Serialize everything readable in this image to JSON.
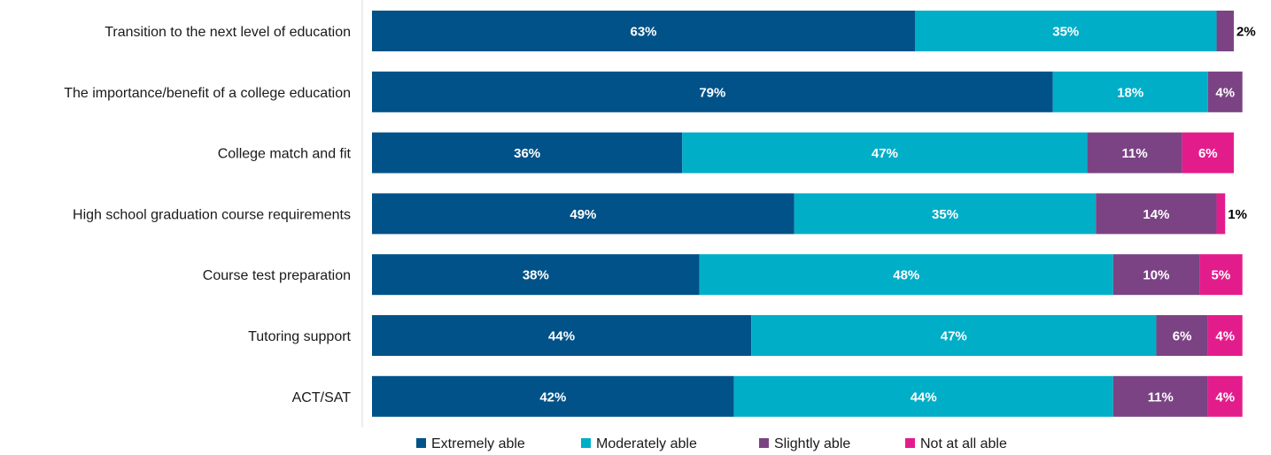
{
  "chart_data": {
    "type": "bar",
    "orientation": "horizontal",
    "stacked": true,
    "categories": [
      "Transition to the next level of education",
      "The importance/benefit of a college education",
      "College match and fit",
      "High school graduation course requirements",
      "Course test preparation",
      "Tutoring support",
      "ACT/SAT"
    ],
    "series": [
      {
        "name": "Extremely able",
        "color": "#005288",
        "values": [
          63,
          79,
          36,
          49,
          38,
          44,
          42
        ]
      },
      {
        "name": "Moderately able",
        "color": "#00AEC7",
        "values": [
          35,
          18,
          47,
          35,
          48,
          47,
          44
        ]
      },
      {
        "name": "Slightly able",
        "color": "#7B4384",
        "values": [
          2,
          4,
          11,
          14,
          10,
          6,
          11
        ]
      },
      {
        "name": "Not at all able",
        "color": "#E31C8C",
        "values": [
          0,
          0,
          6,
          1,
          5,
          4,
          4
        ]
      }
    ],
    "data_labels": [
      [
        "63%",
        "35%",
        "2%",
        ""
      ],
      [
        "79%",
        "18%",
        "4%",
        ""
      ],
      [
        "36%",
        "47%",
        "11%",
        "6%"
      ],
      [
        "49%",
        "35%",
        "14%",
        "1%"
      ],
      [
        "38%",
        "48%",
        "10%",
        "5%"
      ],
      [
        "44%",
        "47%",
        "6%",
        "4%"
      ],
      [
        "42%",
        "44%",
        "11%",
        "4%"
      ]
    ],
    "xlim": [
      0,
      100
    ],
    "title": "",
    "xlabel": "",
    "ylabel": "",
    "grid": false,
    "legend": "bottom"
  }
}
